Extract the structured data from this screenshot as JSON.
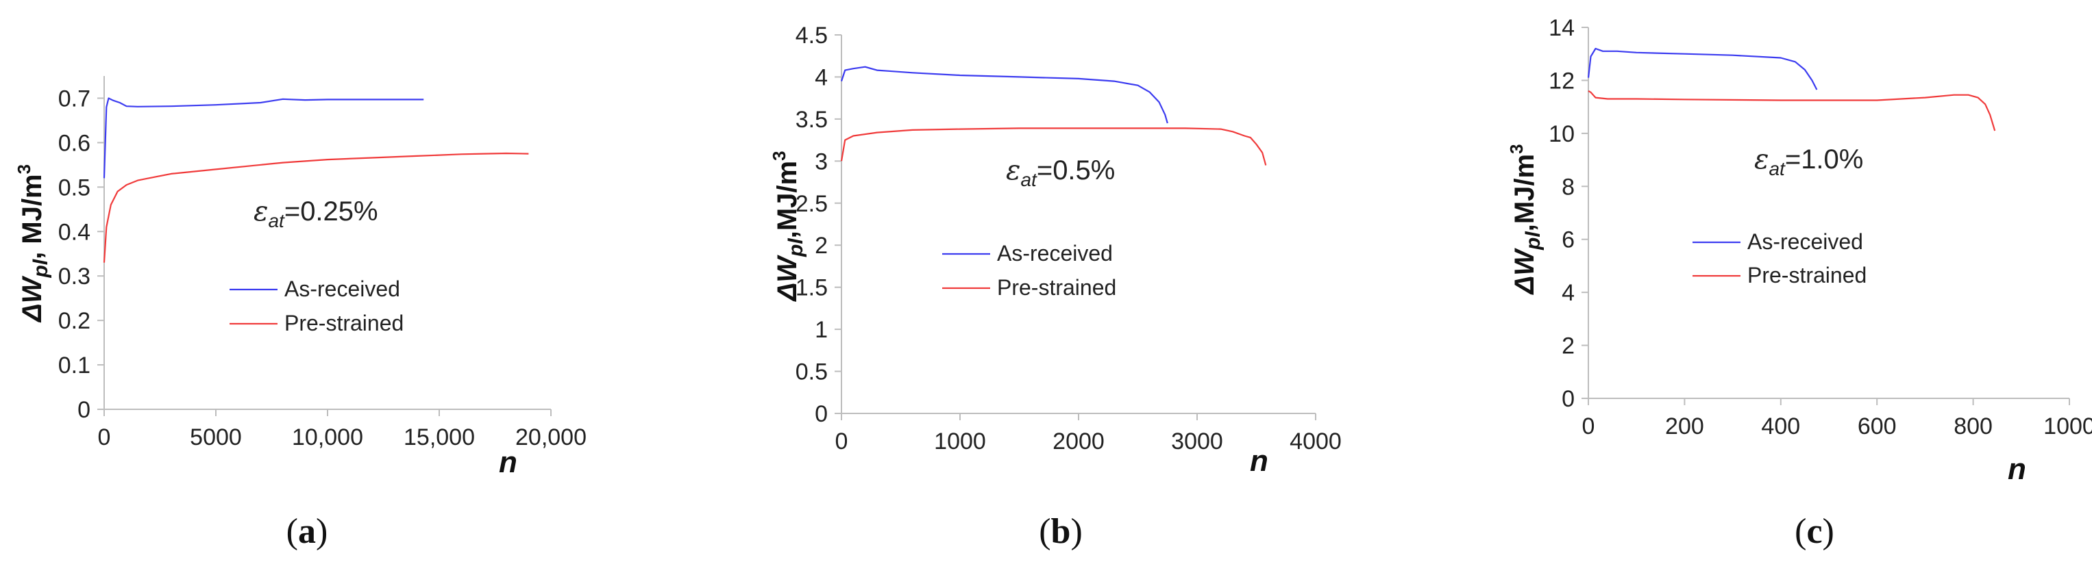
{
  "chart_data": [
    {
      "type": "line",
      "caption_letter": "a",
      "ylabel": {
        "delta": "ΔW",
        "sub": "pl",
        "unit": ", MJ/m",
        "sup": "3"
      },
      "xlabel": "n",
      "annotation": {
        "sym": "ε",
        "sub": "at",
        "value": "=0.25%"
      },
      "xlim": [
        0,
        20000
      ],
      "ylim": [
        0,
        0.75
      ],
      "xticks": [
        0,
        5000,
        10000,
        15000,
        20000
      ],
      "xtick_labels": [
        "0",
        "5000",
        "10,000",
        "15,000",
        "20,000"
      ],
      "yticks": [
        0,
        0.1,
        0.2,
        0.3,
        0.4,
        0.5,
        0.6,
        0.7
      ],
      "ytick_labels": [
        "0",
        "0.1",
        "0.2",
        "0.3",
        "0.4",
        "0.5",
        "0.6",
        "0.7"
      ],
      "series": [
        {
          "name": "As-received",
          "color": "#3b3bf0",
          "x": [
            0,
            100,
            200,
            400,
            700,
            1000,
            1500,
            3000,
            5000,
            7000,
            8000,
            9000,
            10000,
            12000,
            14300
          ],
          "y": [
            0.52,
            0.68,
            0.7,
            0.695,
            0.69,
            0.682,
            0.681,
            0.682,
            0.685,
            0.69,
            0.698,
            0.696,
            0.697,
            0.697,
            0.697
          ]
        },
        {
          "name": "Pre-strained",
          "color": "#f03a3a",
          "x": [
            0,
            100,
            300,
            600,
            1000,
            1500,
            2000,
            3000,
            5000,
            8000,
            10000,
            12000,
            14000,
            16000,
            17000,
            18000,
            19000
          ],
          "y": [
            0.33,
            0.41,
            0.46,
            0.49,
            0.505,
            0.515,
            0.52,
            0.53,
            0.54,
            0.555,
            0.562,
            0.566,
            0.57,
            0.574,
            0.575,
            0.576,
            0.575
          ]
        }
      ]
    },
    {
      "type": "line",
      "caption_letter": "b",
      "ylabel": {
        "delta": "ΔW",
        "sub": "pl",
        "unit": ",MJ/m",
        "sup": "3"
      },
      "xlabel": "n",
      "annotation": {
        "sym": "ε",
        "sub": "at",
        "value": "=0.5%"
      },
      "xlim": [
        0,
        4000
      ],
      "ylim": [
        0,
        4.5
      ],
      "xticks": [
        0,
        1000,
        2000,
        3000,
        4000
      ],
      "xtick_labels": [
        "0",
        "1000",
        "2000",
        "3000",
        "4000"
      ],
      "yticks": [
        0,
        0.5,
        1,
        1.5,
        2,
        2.5,
        3,
        3.5,
        4,
        4.5
      ],
      "ytick_labels": [
        "0",
        "0.5",
        "1",
        "1.5",
        "2",
        "2.5",
        "3",
        "3.5",
        "4",
        "4.5"
      ],
      "series": [
        {
          "name": "As-received",
          "color": "#3b3bf0",
          "x": [
            0,
            30,
            100,
            200,
            300,
            400,
            600,
            1000,
            1500,
            2000,
            2300,
            2500,
            2600,
            2680,
            2730,
            2750
          ],
          "y": [
            3.95,
            4.08,
            4.1,
            4.12,
            4.08,
            4.07,
            4.05,
            4.02,
            4.0,
            3.98,
            3.95,
            3.9,
            3.82,
            3.7,
            3.55,
            3.45
          ]
        },
        {
          "name": "Pre-strained",
          "color": "#f03a3a",
          "x": [
            0,
            30,
            100,
            300,
            600,
            1000,
            1500,
            2000,
            2500,
            2900,
            3200,
            3300,
            3400,
            3450,
            3500,
            3550,
            3580
          ],
          "y": [
            3.0,
            3.25,
            3.3,
            3.34,
            3.37,
            3.38,
            3.39,
            3.39,
            3.39,
            3.39,
            3.38,
            3.35,
            3.3,
            3.28,
            3.2,
            3.1,
            2.95
          ]
        }
      ]
    },
    {
      "type": "line",
      "caption_letter": "c",
      "ylabel": {
        "delta": "ΔW",
        "sub": "pl",
        "unit": ",MJ/m",
        "sup": "3"
      },
      "xlabel": "n",
      "annotation": {
        "sym": "ε",
        "sub": "at",
        "value": "=1.0%"
      },
      "xlim": [
        0,
        1000
      ],
      "ylim": [
        0,
        14
      ],
      "xticks": [
        0,
        200,
        400,
        600,
        800,
        1000
      ],
      "xtick_labels": [
        "0",
        "200",
        "400",
        "600",
        "800",
        "1000"
      ],
      "yticks": [
        0,
        2,
        4,
        6,
        8,
        10,
        12,
        14
      ],
      "ytick_labels": [
        "0",
        "2",
        "4",
        "6",
        "8",
        "10",
        "12",
        "14"
      ],
      "series": [
        {
          "name": "As-received",
          "color": "#3b3bf0",
          "x": [
            0,
            5,
            15,
            30,
            60,
            100,
            200,
            300,
            400,
            430,
            450,
            465,
            475
          ],
          "y": [
            12.1,
            12.9,
            13.2,
            13.1,
            13.1,
            13.05,
            13.0,
            12.95,
            12.85,
            12.7,
            12.4,
            12.0,
            11.65
          ]
        },
        {
          "name": "Pre-strained",
          "color": "#f03a3a",
          "x": [
            0,
            5,
            15,
            40,
            100,
            200,
            400,
            600,
            700,
            760,
            790,
            810,
            825,
            835,
            845
          ],
          "y": [
            11.6,
            11.55,
            11.35,
            11.3,
            11.3,
            11.28,
            11.25,
            11.25,
            11.35,
            11.45,
            11.45,
            11.35,
            11.1,
            10.7,
            10.1
          ]
        }
      ]
    }
  ]
}
